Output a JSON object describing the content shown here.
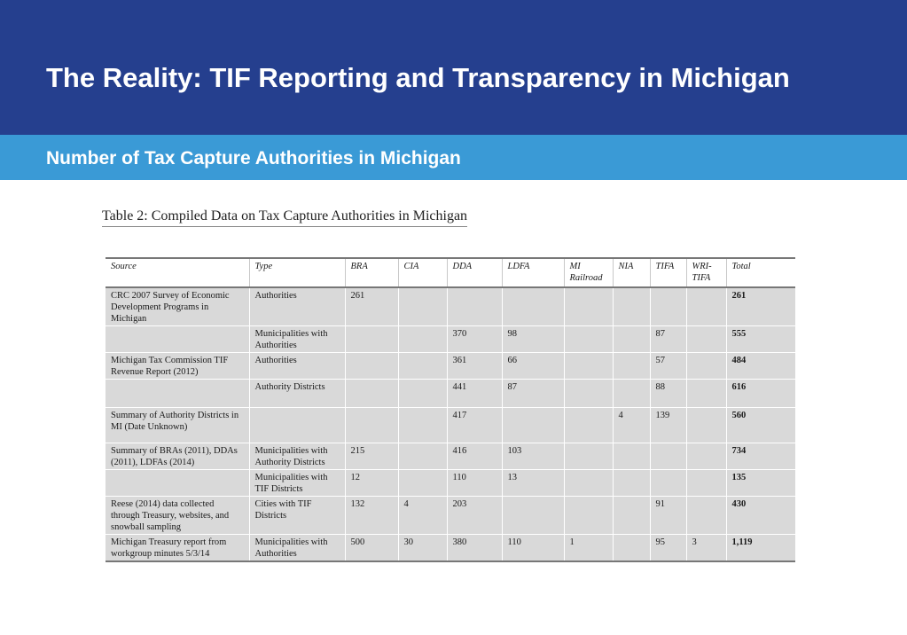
{
  "slide": {
    "title": "The Reality: TIF Reporting and Transparency in Michigan",
    "subtitle": "Number of Tax Capture Authorities in Michigan",
    "colors": {
      "header_band": "#253f8e",
      "subheader_band": "#3a9ad6",
      "cell_fill": "#d9d9d9"
    }
  },
  "table": {
    "caption": "Table 2: Compiled Data on Tax Capture Authorities in Michigan",
    "headers": [
      "Source",
      "Type",
      "BRA",
      "CIA",
      "DDA",
      "LDFA",
      "MI Railroad",
      "NIA",
      "TIFA",
      "WRI-TIFA",
      "Total"
    ],
    "rows": [
      [
        "CRC 2007 Survey of Economic Development Programs in Michigan",
        "Authorities",
        "261",
        "",
        "",
        "",
        "",
        "",
        "",
        "",
        "261"
      ],
      [
        "",
        "Municipalities with Authorities",
        "",
        "",
        "370",
        "98",
        "",
        "",
        "87",
        "",
        "555"
      ],
      [
        "Michigan Tax Commission TIF Revenue Report (2012)",
        "Authorities",
        "",
        "",
        "361",
        "66",
        "",
        "",
        "57",
        "",
        "484"
      ],
      [
        "",
        "Authority Districts",
        "",
        "",
        "441",
        "87",
        "",
        "",
        "88",
        "",
        "616"
      ],
      [
        "Summary of Authority Districts in MI (Date Unknown)",
        "",
        "",
        "",
        "417",
        "",
        "",
        "4",
        "139",
        "",
        "560"
      ],
      [
        "Summary of BRAs (2011), DDAs (2011), LDFAs (2014)",
        "Municipalities with Authority Districts",
        "215",
        "",
        "416",
        "103",
        "",
        "",
        "",
        "",
        "734"
      ],
      [
        "",
        "Municipalities with TIF Districts",
        "12",
        "",
        "110",
        "13",
        "",
        "",
        "",
        "",
        "135"
      ],
      [
        "Reese (2014) data collected through Treasury, websites, and snowball sampling",
        "Cities with TIF Districts",
        "132",
        "4",
        "203",
        "",
        "",
        "",
        "91",
        "",
        "430"
      ],
      [
        "Michigan Treasury report from workgroup minutes 5/3/14",
        "Municipalities with Authorities",
        "500",
        "30",
        "380",
        "110",
        "1",
        "",
        "95",
        "3",
        "1,119"
      ]
    ]
  }
}
